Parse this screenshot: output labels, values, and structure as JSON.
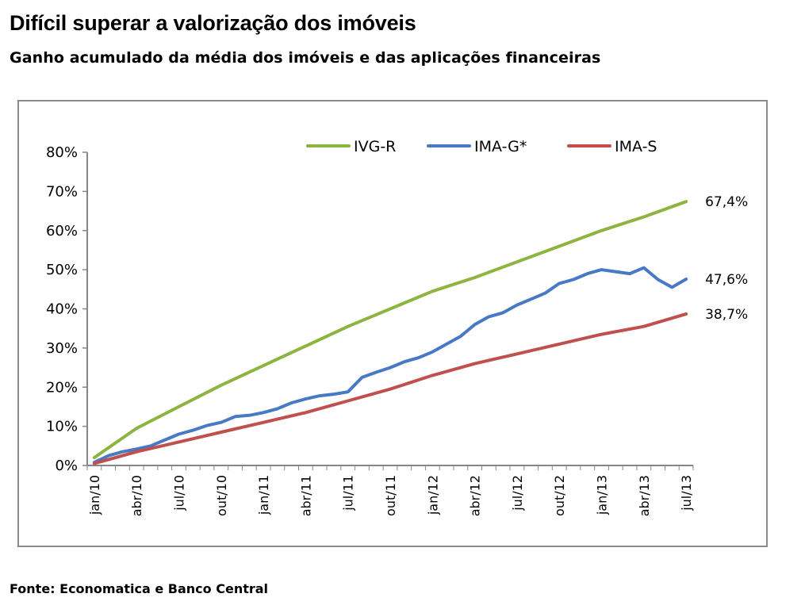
{
  "title": "Difícil superar a valorização dos imóveis",
  "subtitle": "Ganho acumulado da média dos imóveis e das aplicações financeiras",
  "source": "Fonte: Economatica e Banco Central",
  "chart_data": {
    "type": "line",
    "title": "Difícil superar a valorização dos imóveis",
    "subtitle": "Ganho acumulado da média dos imóveis e das aplicações financeiras",
    "xlabel": "",
    "ylabel": "",
    "ylim": [
      0,
      80
    ],
    "y_unit": "%",
    "y_ticks": [
      "0%",
      "10%",
      "20%",
      "30%",
      "40%",
      "50%",
      "60%",
      "70%",
      "80%"
    ],
    "x_ticks": [
      "jan/10",
      "abr/10",
      "jul/10",
      "out/10",
      "jan/11",
      "abr/11",
      "jul/11",
      "out/11",
      "jan/12",
      "abr/12",
      "jul/12",
      "out/12",
      "jan/13",
      "abr/13",
      "jul/13"
    ],
    "x_tick_months": [
      0,
      3,
      6,
      9,
      12,
      15,
      18,
      21,
      24,
      27,
      30,
      33,
      36,
      39,
      42
    ],
    "grid": false,
    "legend_position": "top",
    "series": [
      {
        "name": "IVG-R",
        "color": "#8DB441",
        "end_label": "67,4%",
        "x": [
          0,
          3,
          6,
          9,
          12,
          15,
          18,
          21,
          24,
          27,
          30,
          33,
          36,
          39,
          42
        ],
        "values": [
          2.0,
          9.5,
          15.0,
          20.5,
          25.5,
          30.5,
          35.5,
          40.0,
          44.5,
          48.0,
          52.0,
          56.0,
          60.0,
          63.5,
          67.4
        ]
      },
      {
        "name": "IMA-G*",
        "color": "#4779C4",
        "end_label": "47,6%",
        "x": [
          0,
          1,
          2,
          3,
          4,
          5,
          6,
          7,
          8,
          9,
          10,
          11,
          12,
          13,
          14,
          15,
          16,
          17,
          18,
          19,
          20,
          21,
          22,
          23,
          24,
          25,
          26,
          27,
          28,
          29,
          30,
          31,
          32,
          33,
          34,
          35,
          36,
          37,
          38,
          39,
          40,
          41,
          42
        ],
        "values": [
          0.8,
          2.5,
          3.5,
          4.2,
          5.0,
          6.5,
          8.0,
          9.0,
          10.2,
          11.0,
          12.5,
          12.8,
          13.5,
          14.5,
          16.0,
          17.0,
          17.8,
          18.2,
          18.8,
          22.5,
          23.8,
          25.0,
          26.5,
          27.5,
          29.0,
          31.0,
          33.0,
          36.0,
          38.0,
          39.0,
          41.0,
          42.5,
          44.0,
          46.5,
          47.5,
          49.0,
          50.0,
          49.5,
          49.0,
          50.5,
          47.5,
          45.5,
          47.6
        ]
      },
      {
        "name": "IMA-S",
        "color": "#C0504D",
        "end_label": "38,7%",
        "x": [
          0,
          3,
          6,
          9,
          12,
          15,
          18,
          21,
          24,
          27,
          30,
          33,
          36,
          39,
          42
        ],
        "values": [
          0.5,
          3.5,
          6.0,
          8.5,
          11.0,
          13.5,
          16.5,
          19.5,
          23.0,
          26.0,
          28.5,
          31.0,
          33.5,
          35.5,
          38.7
        ]
      }
    ]
  }
}
